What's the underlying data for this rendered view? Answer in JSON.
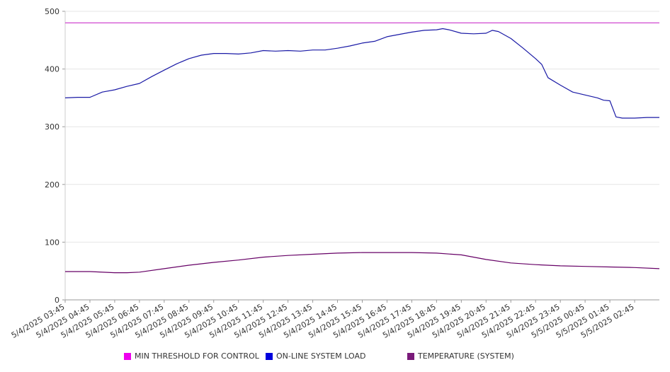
{
  "chart_data": {
    "type": "line",
    "x_ticks": [
      "5/4/2025 03:45",
      "5/4/2025 04:45",
      "5/4/2025 05:45",
      "5/4/2025 06:45",
      "5/4/2025 07:45",
      "5/4/2025 08:45",
      "5/4/2025 09:45",
      "5/4/2025 10:45",
      "5/4/2025 11:45",
      "5/4/2025 12:45",
      "5/4/2025 13:45",
      "5/4/2025 14:45",
      "5/4/2025 15:45",
      "5/4/2025 16:45",
      "5/4/2025 17:45",
      "5/4/2025 18:45",
      "5/4/2025 19:45",
      "5/4/2025 20:45",
      "5/4/2025 21:45",
      "5/4/2025 22:45",
      "5/4/2025 23:45",
      "5/5/2025 00:45",
      "5/5/2025 01:45",
      "5/5/2025 02:45"
    ],
    "y_ticks": [
      0,
      100,
      200,
      300,
      400,
      500
    ],
    "ylim": [
      0,
      500
    ],
    "grid": "horizontal",
    "legend_position": "bottom",
    "series": [
      {
        "name": "MIN THRESHOLD FOR CONTROL",
        "color": "#cc33cc",
        "swatch": "#ee00ee",
        "x": [
          "5/4/2025 03:45",
          "5/5/2025 03:45"
        ],
        "values": [
          480,
          480
        ]
      },
      {
        "name": "ON-LINE SYSTEM LOAD",
        "color": "#1a1aa6",
        "swatch": "#0000dd",
        "x": [
          "5/4/2025 03:45",
          "5/4/2025 04:15",
          "5/4/2025 04:45",
          "5/4/2025 05:15",
          "5/4/2025 05:45",
          "5/4/2025 06:15",
          "5/4/2025 06:45",
          "5/4/2025 07:15",
          "5/4/2025 07:45",
          "5/4/2025 08:15",
          "5/4/2025 08:45",
          "5/4/2025 09:15",
          "5/4/2025 09:45",
          "5/4/2025 10:15",
          "5/4/2025 10:45",
          "5/4/2025 11:15",
          "5/4/2025 11:45",
          "5/4/2025 12:15",
          "5/4/2025 12:45",
          "5/4/2025 13:15",
          "5/4/2025 13:45",
          "5/4/2025 14:15",
          "5/4/2025 14:45",
          "5/4/2025 15:15",
          "5/4/2025 15:45",
          "5/4/2025 16:15",
          "5/4/2025 16:45",
          "5/4/2025 17:15",
          "5/4/2025 17:45",
          "5/4/2025 18:15",
          "5/4/2025 18:45",
          "5/4/2025 19:00",
          "5/4/2025 19:15",
          "5/4/2025 19:45",
          "5/4/2025 20:15",
          "5/4/2025 20:45",
          "5/4/2025 21:00",
          "5/4/2025 21:15",
          "5/4/2025 21:45",
          "5/4/2025 22:15",
          "5/4/2025 22:45",
          "5/4/2025 23:00",
          "5/4/2025 23:15",
          "5/4/2025 23:45",
          "5/5/2025 00:15",
          "5/5/2025 00:45",
          "5/5/2025 01:15",
          "5/5/2025 01:30",
          "5/5/2025 01:45",
          "5/5/2025 02:00",
          "5/5/2025 02:15",
          "5/5/2025 02:45",
          "5/5/2025 03:15",
          "5/5/2025 03:45"
        ],
        "values": [
          350,
          351,
          351,
          360,
          364,
          370,
          375,
          387,
          398,
          409,
          418,
          424,
          427,
          427,
          426,
          428,
          432,
          431,
          432,
          431,
          433,
          433,
          436,
          440,
          445,
          448,
          456,
          460,
          464,
          467,
          468,
          470,
          468,
          462,
          461,
          462,
          467,
          465,
          453,
          436,
          418,
          408,
          385,
          372,
          360,
          355,
          350,
          346,
          345,
          317,
          315,
          315,
          316,
          316
        ]
      },
      {
        "name": "TEMPERATURE (SYSTEM)",
        "color": "#660066",
        "swatch": "#7a1a7a",
        "x": [
          "5/4/2025 03:45",
          "5/4/2025 04:45",
          "5/4/2025 05:45",
          "5/4/2025 06:15",
          "5/4/2025 06:45",
          "5/4/2025 07:45",
          "5/4/2025 08:45",
          "5/4/2025 09:45",
          "5/4/2025 10:45",
          "5/4/2025 11:45",
          "5/4/2025 12:45",
          "5/4/2025 13:45",
          "5/4/2025 14:45",
          "5/4/2025 15:45",
          "5/4/2025 16:45",
          "5/4/2025 17:45",
          "5/4/2025 18:45",
          "5/4/2025 19:45",
          "5/4/2025 20:45",
          "5/4/2025 21:45",
          "5/4/2025 22:45",
          "5/4/2025 23:45",
          "5/5/2025 00:45",
          "5/5/2025 01:45",
          "5/5/2025 02:45",
          "5/5/2025 03:45"
        ],
        "values": [
          49,
          49,
          47,
          47,
          48,
          54,
          60,
          65,
          69,
          74,
          77,
          79,
          81,
          82,
          82,
          82,
          81,
          78,
          70,
          64,
          61,
          59,
          58,
          57,
          56,
          54
        ]
      }
    ]
  }
}
